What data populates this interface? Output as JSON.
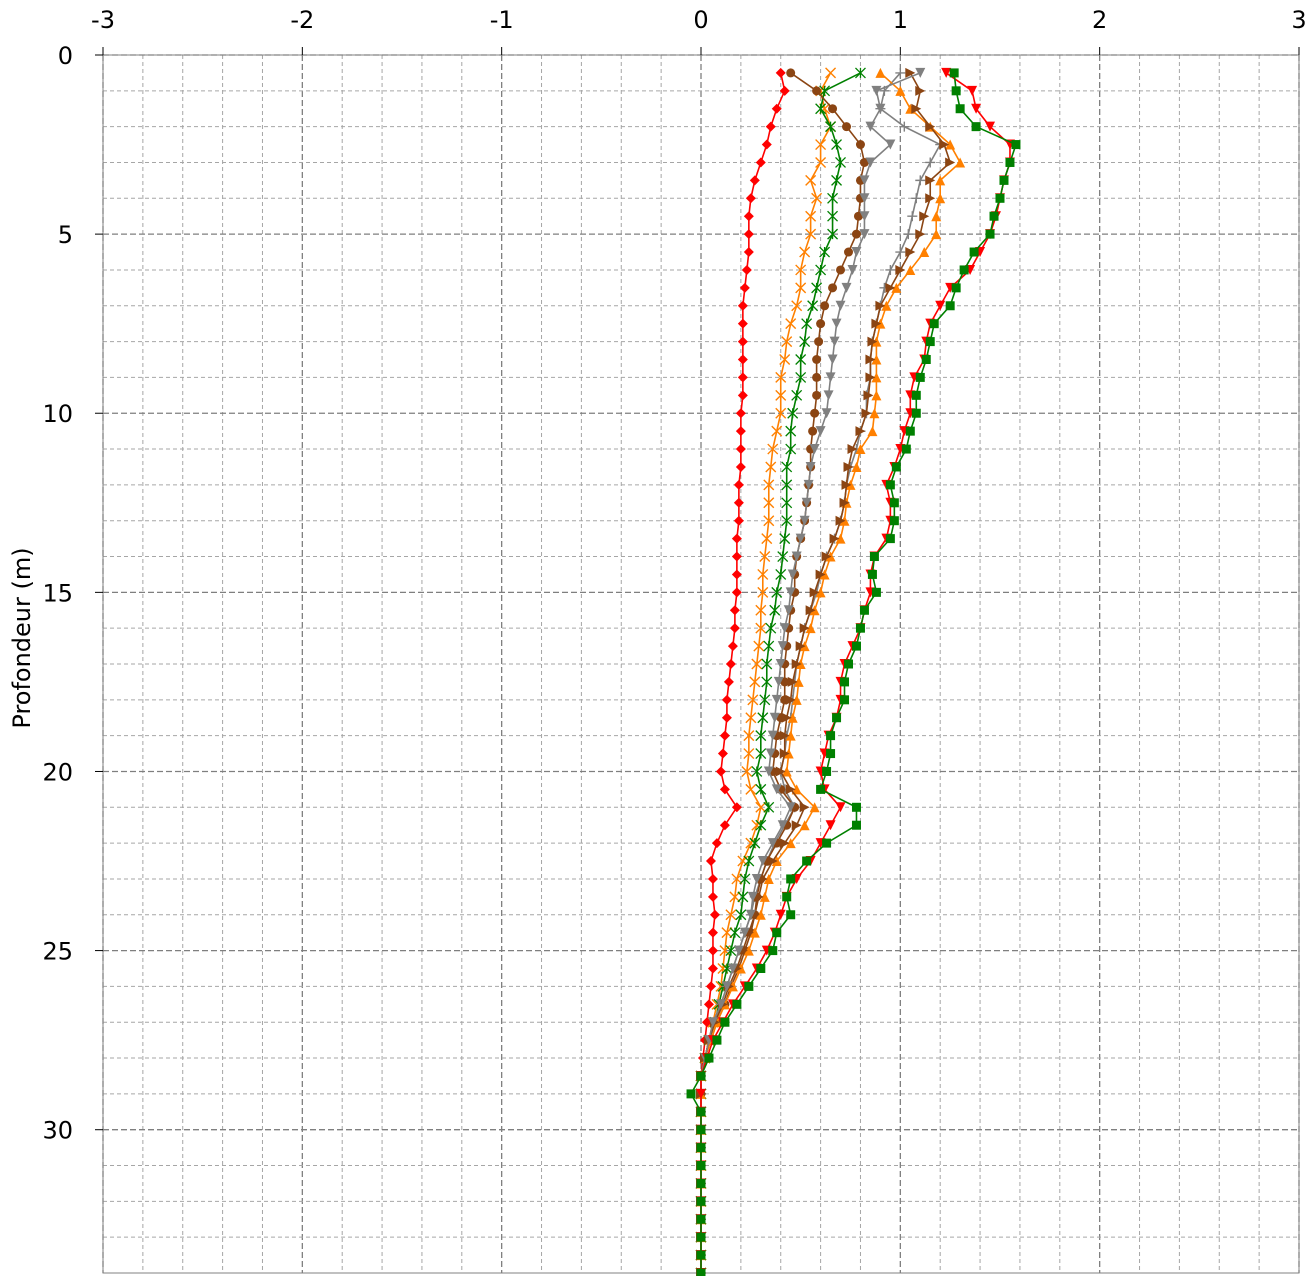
{
  "chart_data": {
    "type": "line",
    "title": "",
    "xlabel": "",
    "ylabel": "Profondeur (m)",
    "xlim": [
      -3,
      3
    ],
    "ylim": [
      0,
      34
    ],
    "x_axis_position": "top",
    "y_axis_inverted": true,
    "x_ticks": [
      -3,
      -2,
      -1,
      0,
      1,
      2,
      3
    ],
    "x_tick_labels": [
      "-3",
      "-2",
      "-1",
      "0",
      "1",
      "2",
      "3"
    ],
    "y_ticks": [
      0,
      5,
      10,
      15,
      20,
      25,
      30
    ],
    "y_tick_labels": [
      "0",
      "5",
      "10",
      "15",
      "20",
      "25",
      "30"
    ],
    "grid": true,
    "legend": "none",
    "depth": [
      0.5,
      1,
      1.5,
      2,
      2.5,
      3,
      3.5,
      4,
      4.5,
      5,
      5.5,
      6,
      6.5,
      7,
      7.5,
      8,
      8.5,
      9,
      9.5,
      10,
      10.5,
      11,
      11.5,
      12,
      12.5,
      13,
      13.5,
      14,
      14.5,
      15,
      15.5,
      16,
      16.5,
      17,
      17.5,
      18,
      18.5,
      19,
      19.5,
      20,
      20.5,
      21,
      21.5,
      22,
      22.5,
      23,
      23.5,
      24,
      24.5,
      25,
      25.5,
      26,
      26.5,
      27,
      27.5,
      28,
      28.5,
      29,
      29.5,
      30,
      30.5,
      31,
      31.5,
      32,
      32.5,
      33,
      33.5,
      34
    ],
    "series": [
      {
        "color": "#ff0000",
        "marker": "diamond",
        "values": [
          0.4,
          0.42,
          0.38,
          0.35,
          0.33,
          0.3,
          0.27,
          0.25,
          0.24,
          0.24,
          0.24,
          0.23,
          0.22,
          0.21,
          0.21,
          0.21,
          0.21,
          0.21,
          0.21,
          0.2,
          0.2,
          0.2,
          0.2,
          0.19,
          0.19,
          0.19,
          0.18,
          0.18,
          0.18,
          0.18,
          0.17,
          0.17,
          0.16,
          0.15,
          0.14,
          0.13,
          0.13,
          0.12,
          0.11,
          0.1,
          0.12,
          0.18,
          0.12,
          0.08,
          0.05,
          0.06,
          0.06,
          0.07,
          0.06,
          0.06,
          0.06,
          0.05,
          0.04,
          0.03,
          0.02,
          0.01,
          0.0,
          0.0,
          0.0,
          0.0,
          0.0,
          0.0,
          0.0,
          0.0,
          0.0,
          0.0,
          0.0,
          0.0
        ]
      },
      {
        "color": "#ff8000",
        "marker": "x",
        "values": [
          0.65,
          0.6,
          0.62,
          0.65,
          0.6,
          0.6,
          0.55,
          0.58,
          0.55,
          0.55,
          0.52,
          0.5,
          0.5,
          0.48,
          0.45,
          0.43,
          0.42,
          0.4,
          0.4,
          0.4,
          0.38,
          0.36,
          0.35,
          0.34,
          0.34,
          0.34,
          0.33,
          0.32,
          0.31,
          0.31,
          0.3,
          0.3,
          0.29,
          0.28,
          0.27,
          0.26,
          0.25,
          0.24,
          0.24,
          0.23,
          0.25,
          0.3,
          0.28,
          0.25,
          0.21,
          0.18,
          0.17,
          0.15,
          0.13,
          0.12,
          0.11,
          0.1,
          0.08,
          0.06,
          0.04,
          0.02,
          0.0,
          0.0,
          0.0,
          0.0,
          0.0,
          0.0,
          0.0,
          0.0,
          0.0,
          0.0,
          0.0,
          0.0
        ]
      },
      {
        "color": "#008000",
        "marker": "asterisk",
        "values": [
          0.8,
          0.62,
          0.6,
          0.65,
          0.68,
          0.7,
          0.68,
          0.66,
          0.66,
          0.66,
          0.62,
          0.6,
          0.58,
          0.56,
          0.53,
          0.52,
          0.5,
          0.5,
          0.48,
          0.46,
          0.45,
          0.45,
          0.43,
          0.43,
          0.43,
          0.43,
          0.42,
          0.41,
          0.4,
          0.38,
          0.37,
          0.35,
          0.34,
          0.33,
          0.33,
          0.32,
          0.31,
          0.3,
          0.3,
          0.28,
          0.3,
          0.34,
          0.3,
          0.27,
          0.24,
          0.22,
          0.21,
          0.2,
          0.17,
          0.15,
          0.13,
          0.11,
          0.09,
          0.07,
          0.04,
          0.02,
          0.0,
          0.0,
          0.0,
          0.0,
          0.0,
          0.0,
          0.0,
          0.0,
          0.0,
          0.0,
          0.0,
          0.0
        ]
      },
      {
        "color": "#808080",
        "marker": "plus",
        "values": [
          1.0,
          0.92,
          0.9,
          1.02,
          1.2,
          1.15,
          1.1,
          1.08,
          1.06,
          1.04,
          1.0,
          0.95,
          0.92,
          0.9,
          0.88,
          0.86,
          0.85,
          0.85,
          0.83,
          0.83,
          0.8,
          0.78,
          0.75,
          0.73,
          0.72,
          0.7,
          0.67,
          0.63,
          0.6,
          0.58,
          0.55,
          0.52,
          0.5,
          0.48,
          0.47,
          0.46,
          0.45,
          0.43,
          0.42,
          0.4,
          0.42,
          0.47,
          0.42,
          0.37,
          0.33,
          0.3,
          0.27,
          0.25,
          0.22,
          0.19,
          0.16,
          0.13,
          0.1,
          0.07,
          0.04,
          0.02,
          0.0,
          0.0,
          0.0,
          0.0,
          0.0,
          0.0,
          0.0,
          0.0,
          0.0,
          0.0,
          0.0,
          0.0
        ]
      },
      {
        "color": "#8b4513",
        "marker": "circle",
        "values": [
          0.45,
          0.58,
          0.66,
          0.73,
          0.8,
          0.82,
          0.8,
          0.8,
          0.79,
          0.78,
          0.74,
          0.7,
          0.66,
          0.62,
          0.6,
          0.59,
          0.58,
          0.58,
          0.58,
          0.57,
          0.56,
          0.55,
          0.55,
          0.54,
          0.53,
          0.52,
          0.5,
          0.48,
          0.47,
          0.47,
          0.45,
          0.44,
          0.43,
          0.42,
          0.42,
          0.42,
          0.4,
          0.38,
          0.37,
          0.36,
          0.4,
          0.47,
          0.43,
          0.38,
          0.33,
          0.3,
          0.28,
          0.27,
          0.25,
          0.22,
          0.19,
          0.15,
          0.12,
          0.08,
          0.05,
          0.02,
          0.0,
          0.0,
          0.0,
          0.0,
          0.0,
          0.0,
          0.0,
          0.0,
          0.0,
          0.0,
          0.0,
          0.0
        ]
      },
      {
        "color": "#ff8000",
        "marker": "triangle-up",
        "values": [
          0.9,
          1.0,
          1.05,
          1.15,
          1.25,
          1.3,
          1.2,
          1.2,
          1.18,
          1.18,
          1.12,
          1.05,
          0.98,
          0.93,
          0.9,
          0.88,
          0.88,
          0.88,
          0.88,
          0.87,
          0.86,
          0.8,
          0.78,
          0.75,
          0.73,
          0.72,
          0.7,
          0.65,
          0.62,
          0.6,
          0.57,
          0.55,
          0.52,
          0.5,
          0.49,
          0.48,
          0.46,
          0.45,
          0.44,
          0.43,
          0.48,
          0.57,
          0.52,
          0.45,
          0.38,
          0.34,
          0.32,
          0.3,
          0.27,
          0.24,
          0.2,
          0.16,
          0.12,
          0.08,
          0.05,
          0.02,
          0.0,
          0.0,
          0.0,
          0.0,
          0.0,
          0.0,
          0.0,
          0.0,
          0.0,
          0.0,
          0.0,
          0.0
        ]
      },
      {
        "color": "#8b4513",
        "marker": "triangle-right",
        "values": [
          1.05,
          1.1,
          1.08,
          1.15,
          1.22,
          1.25,
          1.15,
          1.15,
          1.12,
          1.1,
          1.05,
          1.0,
          0.95,
          0.9,
          0.88,
          0.86,
          0.85,
          0.85,
          0.84,
          0.83,
          0.8,
          0.76,
          0.74,
          0.73,
          0.72,
          0.7,
          0.67,
          0.63,
          0.6,
          0.57,
          0.55,
          0.52,
          0.5,
          0.48,
          0.46,
          0.45,
          0.43,
          0.42,
          0.42,
          0.4,
          0.45,
          0.52,
          0.48,
          0.42,
          0.36,
          0.31,
          0.29,
          0.27,
          0.24,
          0.21,
          0.18,
          0.14,
          0.11,
          0.07,
          0.04,
          0.02,
          0.0,
          0.0,
          0.0,
          0.0,
          0.0,
          0.0,
          0.0,
          0.0,
          0.0,
          0.0,
          0.0,
          0.0
        ]
      },
      {
        "color": "#808080",
        "marker": "triangle-down",
        "values": [
          1.1,
          0.88,
          0.9,
          0.85,
          0.95,
          0.85,
          0.82,
          0.82,
          0.82,
          0.82,
          0.78,
          0.76,
          0.73,
          0.7,
          0.68,
          0.67,
          0.66,
          0.65,
          0.64,
          0.63,
          0.6,
          0.57,
          0.55,
          0.54,
          0.53,
          0.52,
          0.5,
          0.48,
          0.46,
          0.45,
          0.44,
          0.42,
          0.41,
          0.4,
          0.39,
          0.38,
          0.37,
          0.36,
          0.35,
          0.34,
          0.38,
          0.45,
          0.41,
          0.36,
          0.31,
          0.28,
          0.26,
          0.25,
          0.22,
          0.19,
          0.16,
          0.13,
          0.1,
          0.06,
          0.04,
          0.02,
          0.0,
          0.0,
          0.0,
          0.0,
          0.0,
          0.0,
          0.0,
          0.0,
          0.0,
          0.0,
          0.0,
          0.0
        ]
      },
      {
        "color": "#ff0000",
        "marker": "triangle-down",
        "values": [
          1.23,
          1.36,
          1.38,
          1.45,
          1.55,
          1.55,
          1.52,
          1.5,
          1.48,
          1.45,
          1.4,
          1.35,
          1.25,
          1.2,
          1.15,
          1.13,
          1.12,
          1.07,
          1.05,
          1.05,
          1.02,
          1.0,
          0.97,
          0.93,
          0.95,
          0.95,
          0.93,
          0.87,
          0.85,
          0.85,
          0.82,
          0.8,
          0.76,
          0.72,
          0.7,
          0.7,
          0.68,
          0.64,
          0.62,
          0.6,
          0.62,
          0.7,
          0.65,
          0.6,
          0.55,
          0.48,
          0.43,
          0.4,
          0.37,
          0.33,
          0.28,
          0.22,
          0.16,
          0.11,
          0.06,
          0.03,
          0.0,
          0.0,
          0.0,
          0.0,
          0.0,
          0.0,
          0.0,
          0.0,
          0.0,
          0.0,
          0.0,
          0.0
        ]
      },
      {
        "color": "#008000",
        "marker": "square",
        "values": [
          1.27,
          1.28,
          1.3,
          1.38,
          1.58,
          1.55,
          1.52,
          1.5,
          1.47,
          1.45,
          1.37,
          1.32,
          1.28,
          1.25,
          1.17,
          1.15,
          1.13,
          1.1,
          1.08,
          1.08,
          1.05,
          1.03,
          0.98,
          0.95,
          0.97,
          0.97,
          0.95,
          0.87,
          0.86,
          0.88,
          0.82,
          0.8,
          0.78,
          0.74,
          0.72,
          0.72,
          0.68,
          0.65,
          0.65,
          0.63,
          0.6,
          0.78,
          0.78,
          0.63,
          0.53,
          0.45,
          0.43,
          0.45,
          0.38,
          0.36,
          0.3,
          0.24,
          0.18,
          0.12,
          0.08,
          0.04,
          0.0,
          -0.05,
          0.0,
          0.0,
          0.0,
          0.0,
          0.0,
          0.0,
          0.0,
          0.0,
          0.0,
          0.0
        ]
      }
    ]
  }
}
